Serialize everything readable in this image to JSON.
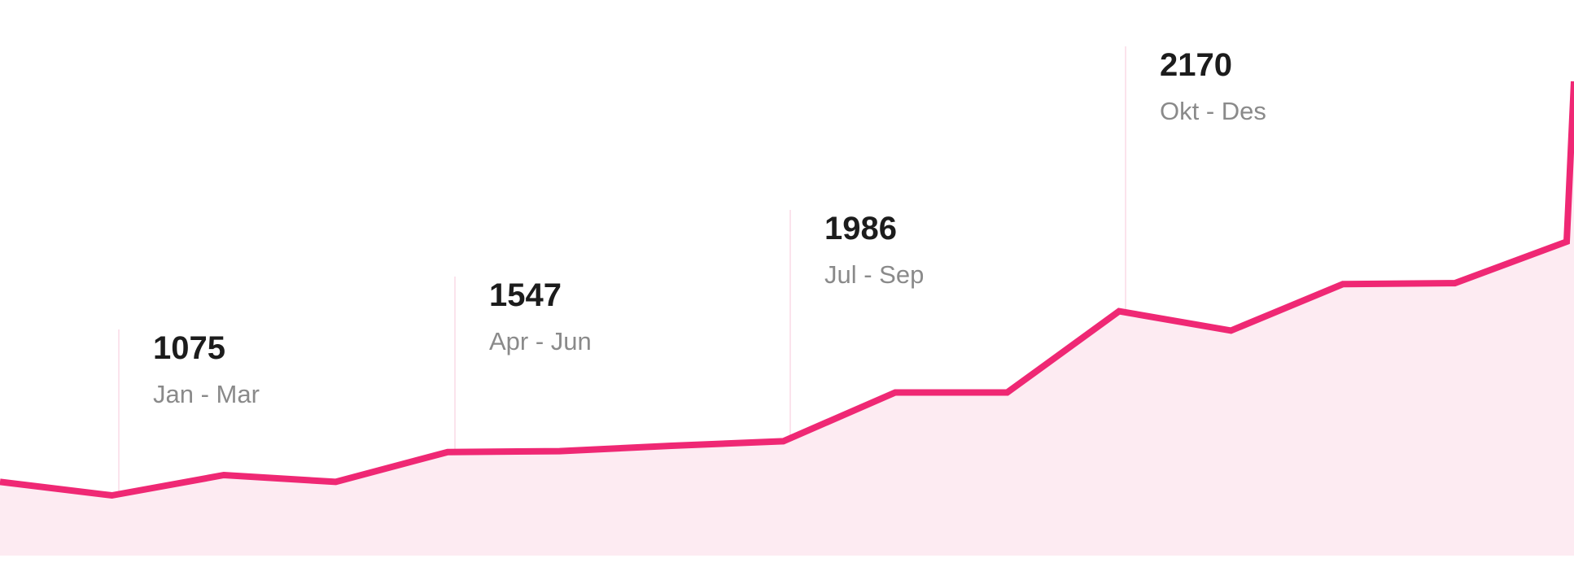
{
  "chart_data": {
    "type": "area",
    "values": [
      1030,
      1000,
      1045,
      1030,
      1096,
      1098,
      1110,
      1120,
      1228,
      1228,
      1408,
      1365,
      1468,
      1470,
      1562
    ],
    "annotations": [
      {
        "value": "1075",
        "period": "Jan - Mar"
      },
      {
        "value": "1547",
        "period": "Apr - Jun"
      },
      {
        "value": "1986",
        "period": "Jul - Sep"
      },
      {
        "value": "2170",
        "period": "Okt - Des"
      }
    ],
    "title": "",
    "xlabel": "",
    "ylabel": "",
    "grid": false,
    "legend": "none",
    "colors": {
      "line": "#ef2874",
      "fill": "#fdebf2",
      "divider": "#fbe3ec",
      "value_text": "#1c1c1c",
      "period_text": "#8a8a8a"
    }
  }
}
